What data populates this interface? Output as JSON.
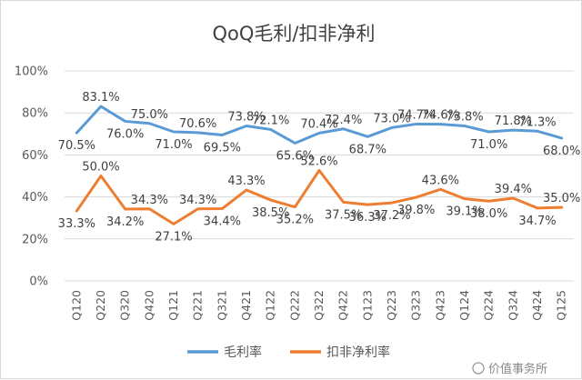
{
  "chart_data": {
    "type": "line",
    "title": "QoQ毛利/扣非净利",
    "categories": [
      "Q120",
      "Q220",
      "Q320",
      "Q420",
      "Q121",
      "Q221",
      "Q321",
      "Q421",
      "Q122",
      "Q222",
      "Q322",
      "Q422",
      "Q123",
      "Q223",
      "Q323",
      "Q423",
      "Q124",
      "Q224",
      "Q324",
      "Q424",
      "Q125"
    ],
    "ylim": [
      0,
      100
    ],
    "yticks": [
      "0%",
      "20%",
      "40%",
      "60%",
      "80%",
      "100%"
    ],
    "grid": true,
    "legend": "bottom",
    "series": [
      {
        "name": "毛利率",
        "color": "#5b9bd5",
        "values": [
          70.5,
          83.1,
          76.0,
          75.0,
          71.0,
          70.6,
          69.5,
          73.8,
          72.1,
          65.6,
          70.4,
          72.4,
          68.7,
          73.0,
          74.7,
          74.6,
          73.8,
          71.0,
          71.8,
          71.3,
          68.0
        ],
        "labels": [
          "70.5%",
          "83.1%",
          "76.0%",
          "75.0%",
          "71.0%",
          "70.6%",
          "69.5%",
          "73.8%",
          "72.1%",
          "65.6%",
          "70.4%",
          "72.4%",
          "68.7%",
          "73.0%",
          "74.7%",
          "74.6%",
          "73.8%",
          "71.0%",
          "71.8%",
          "71.3%",
          "68.0%"
        ]
      },
      {
        "name": "扣非净利率",
        "color": "#ed7d31",
        "values": [
          33.3,
          50.0,
          34.2,
          34.3,
          27.1,
          34.3,
          34.4,
          43.3,
          38.5,
          35.2,
          52.6,
          37.5,
          36.3,
          37.2,
          39.8,
          43.6,
          39.1,
          38.0,
          39.4,
          34.7,
          35.0
        ],
        "labels": [
          "33.3%",
          "50.0%",
          "34.2%",
          "34.3%",
          "27.1%",
          "34.3%",
          "34.4%",
          "43.3%",
          "38.5%",
          "35.2%",
          "52.6%",
          "37.5%",
          "36.3%",
          "37.2%",
          "39.8%",
          "43.6%",
          "39.1%",
          "38.0%",
          "39.4%",
          "34.7%",
          "35.0%"
        ]
      }
    ]
  },
  "watermark": "价值事务所"
}
